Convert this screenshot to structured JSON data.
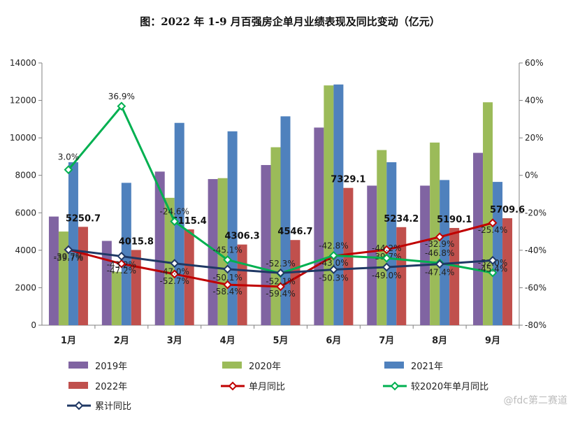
{
  "chart_data": {
    "type": "bar",
    "title": "图：2022 年 1-9 月百强房企单月业绩表现及同比变动（亿元）",
    "categories": [
      "1月",
      "2月",
      "3月",
      "4月",
      "5月",
      "6月",
      "7月",
      "8月",
      "9月"
    ],
    "ylim": [
      0,
      14000
    ],
    "yticks": [
      0,
      2000,
      4000,
      6000,
      8000,
      10000,
      12000,
      14000
    ],
    "y2lim": [
      -80,
      60
    ],
    "y2ticks": [
      "-80%",
      "-60%",
      "-40%",
      "-20%",
      "0%",
      "20%",
      "40%",
      "60%"
    ],
    "grid": false,
    "legend_position": "bottom",
    "series": [
      {
        "name": "2019年",
        "kind": "bar",
        "color": "#8064a2",
        "values": [
          5800,
          4500,
          8200,
          7800,
          8550,
          10550,
          7450,
          7450,
          9200
        ]
      },
      {
        "name": "2020年",
        "kind": "bar",
        "color": "#9bbb59",
        "values": [
          5000,
          2850,
          6800,
          7850,
          9500,
          12800,
          9350,
          9750,
          11900
        ]
      },
      {
        "name": "2021年",
        "kind": "bar",
        "color": "#4f81bd",
        "values": [
          8700,
          7600,
          10800,
          10350,
          11150,
          12850,
          8700,
          7750,
          7650
        ]
      },
      {
        "name": "2022年",
        "kind": "bar",
        "color": "#c0504d",
        "values": [
          5250.7,
          4015.8,
          5115.4,
          4306.3,
          4546.7,
          7329.1,
          5234.2,
          5190.1,
          5709.6
        ],
        "labels": [
          "5250.7",
          "4015.8",
          "5115.4",
          "4306.3",
          "4546.7",
          "7329.1",
          "5234.2",
          "5190.1",
          "5709.6"
        ]
      },
      {
        "name": "单月同比",
        "kind": "line",
        "axis": "right",
        "color": "#c00000",
        "values": [
          -39.7,
          -47.2,
          -52.7,
          -58.4,
          -59.4,
          -43.0,
          -39.7,
          -32.9,
          -25.4
        ],
        "labels": [
          "-39.7%",
          "-47.2%",
          "-52.7%",
          "-58.4%",
          "-59.4%",
          "-43.0%",
          "-39.7%",
          "-32.9%",
          "-25.4%"
        ]
      },
      {
        "name": "较2020年单月同比",
        "kind": "line",
        "axis": "right",
        "color": "#00b050",
        "values": [
          3.0,
          36.9,
          -24.6,
          -45.1,
          -52.3,
          -42.8,
          -44.2,
          -46.8,
          -52.0
        ],
        "labels": [
          "3.0%",
          "36.9%",
          "-24.6%",
          "-45.1%",
          "-52.3%",
          "-42.8%",
          "-44.2%",
          "-46.8%",
          "-52.0%"
        ]
      },
      {
        "name": "累计同比",
        "kind": "line",
        "axis": "right",
        "color": "#1f3864",
        "values": [
          -39.7,
          -43.2,
          -47.0,
          -50.1,
          -52.1,
          -50.3,
          -49.0,
          -47.4,
          -45.4
        ],
        "labels": [
          "-39.7%",
          "-43.2%",
          "-47.0%",
          "-50.1%",
          "-52.1%",
          "-50.3%",
          "-49.0%",
          "-47.4%",
          "-45.4%"
        ]
      }
    ]
  },
  "watermark": "@fdc第二赛道"
}
